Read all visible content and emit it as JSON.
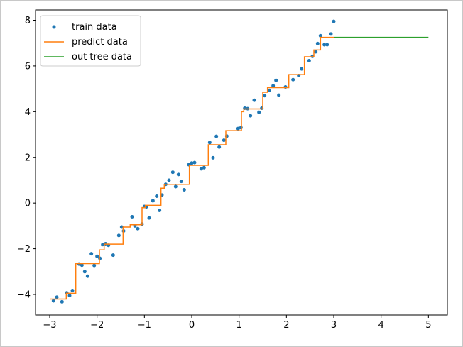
{
  "chart_data": {
    "type": "scatter",
    "xlim": [
      -3.3,
      5.4
    ],
    "ylim": [
      -4.9,
      8.45
    ],
    "x_ticks": [
      -3,
      -2,
      -1,
      0,
      1,
      2,
      3,
      4,
      5
    ],
    "y_ticks": [
      -4,
      -2,
      0,
      2,
      4,
      6,
      8
    ],
    "x_tick_labels": [
      "−3",
      "−2",
      "−1",
      "0",
      "1",
      "2",
      "3",
      "4",
      "5"
    ],
    "y_tick_labels": [
      "−4",
      "−2",
      "0",
      "2",
      "4",
      "6",
      "8"
    ],
    "grid": false,
    "legend_position": "top-left",
    "series": [
      {
        "name": "train data",
        "kind": "scatter",
        "color": "#1f77b4",
        "x": [
          -2.92,
          -2.85,
          -2.74,
          -2.64,
          -2.58,
          -2.52,
          -2.38,
          -2.32,
          -2.26,
          -2.2,
          -2.12,
          -2.06,
          -2.0,
          -1.94,
          -1.88,
          -1.82,
          -1.76,
          -1.66,
          -1.54,
          -1.48,
          -1.44,
          -1.26,
          -1.2,
          -1.14,
          -1.05,
          -1.0,
          -0.96,
          -0.9,
          -0.82,
          -0.74,
          -0.68,
          -0.63,
          -0.55,
          -0.48,
          -0.4,
          -0.34,
          -0.28,
          -0.22,
          -0.16,
          -0.06,
          0.0,
          0.06,
          0.2,
          0.26,
          0.38,
          0.45,
          0.52,
          0.58,
          0.68,
          0.74,
          0.98,
          1.04,
          1.12,
          1.18,
          1.24,
          1.32,
          1.42,
          1.48,
          1.54,
          1.64,
          1.72,
          1.78,
          1.84,
          1.98,
          2.14,
          2.26,
          2.32,
          2.48,
          2.55,
          2.62,
          2.66,
          2.72,
          2.8,
          2.86,
          2.94,
          3.0
        ],
        "y": [
          -4.28,
          -4.12,
          -4.32,
          -3.93,
          -4.05,
          -3.83,
          -2.67,
          -2.72,
          -3.0,
          -3.2,
          -2.22,
          -2.73,
          -2.33,
          -2.42,
          -1.82,
          -1.78,
          -1.85,
          -2.28,
          -1.42,
          -1.05,
          -1.22,
          -0.6,
          -1.0,
          -1.12,
          -0.92,
          -0.15,
          -0.17,
          -0.65,
          0.1,
          0.3,
          -0.32,
          0.35,
          0.82,
          1.0,
          1.35,
          0.72,
          1.25,
          0.95,
          0.58,
          1.68,
          1.75,
          1.77,
          1.5,
          1.55,
          2.65,
          1.98,
          2.92,
          2.45,
          2.75,
          2.93,
          3.26,
          3.3,
          4.15,
          4.13,
          3.82,
          4.5,
          3.97,
          4.15,
          4.7,
          4.93,
          5.13,
          5.37,
          4.72,
          5.08,
          5.4,
          5.58,
          5.87,
          6.23,
          6.42,
          6.62,
          6.98,
          7.32,
          6.93,
          6.93,
          7.4,
          7.95
        ]
      },
      {
        "name": "predict data",
        "kind": "line",
        "color": "#ff7f0e",
        "x": [
          -3.0,
          -2.65,
          -2.65,
          -2.45,
          -2.45,
          -1.95,
          -1.95,
          -1.85,
          -1.85,
          -1.45,
          -1.45,
          -1.3,
          -1.3,
          -1.05,
          -1.05,
          -0.98,
          -0.98,
          -0.65,
          -0.65,
          -0.58,
          -0.58,
          -0.05,
          -0.05,
          0.35,
          0.35,
          0.72,
          0.72,
          1.05,
          1.05,
          1.1,
          1.1,
          1.5,
          1.5,
          1.6,
          1.6,
          2.05,
          2.05,
          2.38,
          2.38,
          2.58,
          2.58,
          2.72,
          2.72,
          3.0
        ],
        "y": [
          -4.2,
          -4.2,
          -3.95,
          -3.95,
          -2.65,
          -2.65,
          -2.05,
          -2.05,
          -1.8,
          -1.8,
          -1.05,
          -1.05,
          -0.95,
          -0.95,
          -0.2,
          -0.2,
          -0.1,
          -0.1,
          0.65,
          0.65,
          0.82,
          0.82,
          1.65,
          1.65,
          2.55,
          2.55,
          3.17,
          3.17,
          4.0,
          4.0,
          4.12,
          4.12,
          4.85,
          4.85,
          5.05,
          5.05,
          5.62,
          5.62,
          6.4,
          6.4,
          6.7,
          6.7,
          7.25,
          7.25
        ]
      },
      {
        "name": "out tree data",
        "kind": "line",
        "color": "#2ca02c",
        "x": [
          3.0,
          5.0
        ],
        "y": [
          7.25,
          7.25
        ]
      }
    ]
  }
}
